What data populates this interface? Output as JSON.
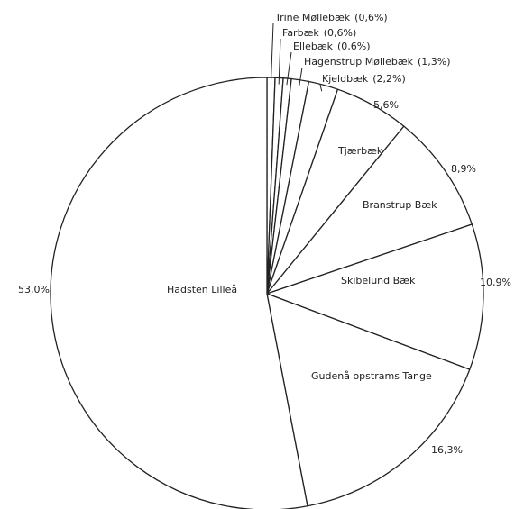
{
  "chart_data": {
    "type": "pie",
    "categories": [
      "Trine Møllebæk",
      "Farbæk",
      "Ellebæk",
      "Hagenstrup Møllebæk",
      "Kjeldbæk",
      "Tjærbæk",
      "Branstrup Bæk",
      "Skibelund Bæk",
      "Gudenå opstrams Tange",
      "Hadsten Lilleå"
    ],
    "values": [
      0.6,
      0.6,
      0.6,
      1.3,
      2.2,
      5.6,
      8.9,
      10.9,
      16.3,
      53.0
    ],
    "value_labels": [
      "(0,6%)",
      "(0,6%)",
      "(0,6%)",
      "(1,3%)",
      "(2,2%)",
      "5,6%",
      "8,9%",
      "10,9%",
      "16,3%",
      "53,0%"
    ],
    "color": "#ffffff"
  }
}
